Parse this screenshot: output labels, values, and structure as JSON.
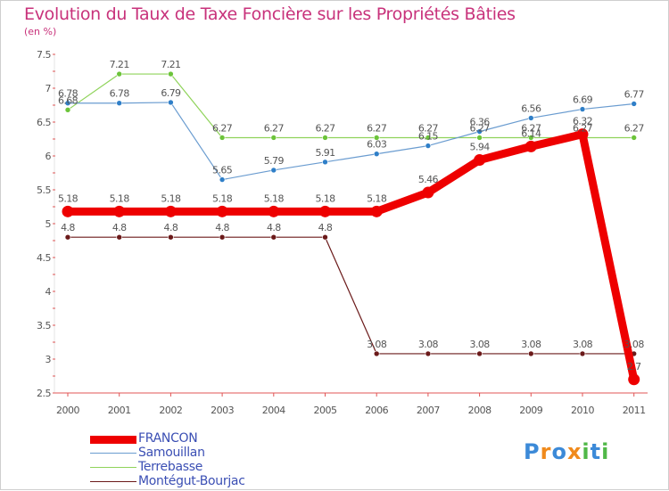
{
  "title": "Evolution du Taux de Taxe Foncière sur les Propriétés Bâties",
  "unit_label": "(en %)",
  "logo": {
    "text": "Proxiti",
    "letters": [
      "P",
      "r",
      "o",
      "x",
      "i",
      "t",
      "i"
    ],
    "colors": [
      "#3c8ad8",
      "#f08a1c",
      "#3c8ad8",
      "#f08a1c",
      "#50b848",
      "#3c8ad8",
      "#50b848"
    ]
  },
  "chart_data": {
    "type": "line",
    "title": "Evolution du Taux de Taxe Foncière sur les Propriétés Bâties",
    "ylabel": "(en %)",
    "xlabel": "",
    "x": [
      "2000",
      "2001",
      "2002",
      "2003",
      "2004",
      "2005",
      "2006",
      "2007",
      "2008",
      "2009",
      "2010",
      "2011"
    ],
    "ylim": [
      2.5,
      7.5
    ],
    "yticks": [
      "2.5",
      "3",
      "3.5",
      "4",
      "4.5",
      "5",
      "5.5",
      "6",
      "6.5",
      "7",
      "7.5"
    ],
    "grid": false,
    "legend_position": "bottom-left",
    "series": [
      {
        "name": "Montégut-Bourjac",
        "color": "#6b1a1a",
        "marker": "#6b1a1a",
        "values": [
          4.8,
          4.8,
          4.8,
          4.8,
          4.8,
          4.8,
          3.08,
          3.08,
          3.08,
          3.08,
          3.08,
          3.08
        ],
        "labels": [
          "4.8",
          "4.8",
          "4.8",
          "4.8",
          "4.8",
          "4.8",
          "3.08",
          "3.08",
          "3.08",
          "3.08",
          "3.08",
          "3.08"
        ]
      },
      {
        "name": "Terrebasse",
        "color": "#8fd35a",
        "marker": "#6cc43a",
        "values": [
          6.68,
          7.21,
          7.21,
          6.27,
          6.27,
          6.27,
          6.27,
          6.27,
          6.27,
          6.27,
          6.27,
          6.27
        ],
        "labels": [
          "6.68",
          "7.21",
          "7.21",
          "6.27",
          "6.27",
          "6.27",
          "6.27",
          "6.27",
          "6.27",
          "6.27",
          "6.27",
          "6.27"
        ]
      },
      {
        "name": "Samouillan",
        "color": "#6a9cd0",
        "marker": "#2f7fc8",
        "values": [
          6.78,
          6.78,
          6.79,
          5.65,
          5.79,
          5.91,
          6.03,
          6.15,
          6.36,
          6.56,
          6.69,
          6.77
        ],
        "labels": [
          "6.78",
          "6.78",
          "6.79",
          "5.65",
          "5.79",
          "5.91",
          "6.03",
          "6.15",
          "6.36",
          "6.56",
          "6.69",
          "6.77"
        ]
      },
      {
        "name": "FRANCON",
        "color": "#ee0000",
        "marker": "#ee0000",
        "values": [
          5.18,
          5.18,
          5.18,
          5.18,
          5.18,
          5.18,
          5.18,
          5.46,
          5.94,
          6.14,
          6.32,
          2.7
        ],
        "labels": [
          "5.18",
          "5.18",
          "5.18",
          "5.18",
          "5.18",
          "5.18",
          "5.18",
          "5.46",
          "5.94",
          "6.14",
          "6.32",
          "2.7"
        ]
      }
    ]
  },
  "legend": [
    {
      "label": "FRANCON",
      "color": "#ee0000"
    },
    {
      "label": "Samouillan",
      "color": "#6a9cd0"
    },
    {
      "label": "Terrebasse",
      "color": "#8fd35a"
    },
    {
      "label": "Montégut-Bourjac",
      "color": "#6b1a1a"
    }
  ]
}
